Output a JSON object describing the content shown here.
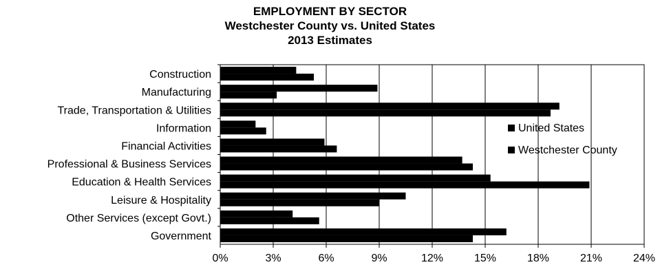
{
  "chart_data": {
    "type": "bar",
    "orientation": "horizontal",
    "title": "EMPLOYMENT BY SECTOR",
    "subtitle": "Westchester  County vs. United States",
    "subtitle2": "2013 Estimates",
    "categories": [
      "Construction",
      "Manufacturing",
      "Trade, Transportation & Utilities",
      "Information",
      "Financial Activities",
      "Professional & Business Services",
      "Education & Health Services",
      "Leisure & Hospitality",
      "Other Services (except Govt.)",
      "Government"
    ],
    "series": [
      {
        "name": "United States",
        "values": [
          4.3,
          8.9,
          19.2,
          2.0,
          5.9,
          13.7,
          15.3,
          10.5,
          4.1,
          16.2
        ],
        "color": "#000000"
      },
      {
        "name": "Westchester County",
        "values": [
          5.3,
          3.2,
          18.7,
          2.6,
          6.6,
          14.3,
          20.9,
          9.0,
          5.6,
          14.3
        ],
        "color": "#000000"
      }
    ],
    "xlim": [
      0,
      24
    ],
    "xticks": [
      "0%",
      "3%",
      "6%",
      "9%",
      "12%",
      "15%",
      "18%",
      "21%",
      "24%"
    ],
    "xtick_values": [
      0,
      3,
      6,
      9,
      12,
      15,
      18,
      21,
      24
    ],
    "grid": true,
    "legend_position": "right"
  }
}
